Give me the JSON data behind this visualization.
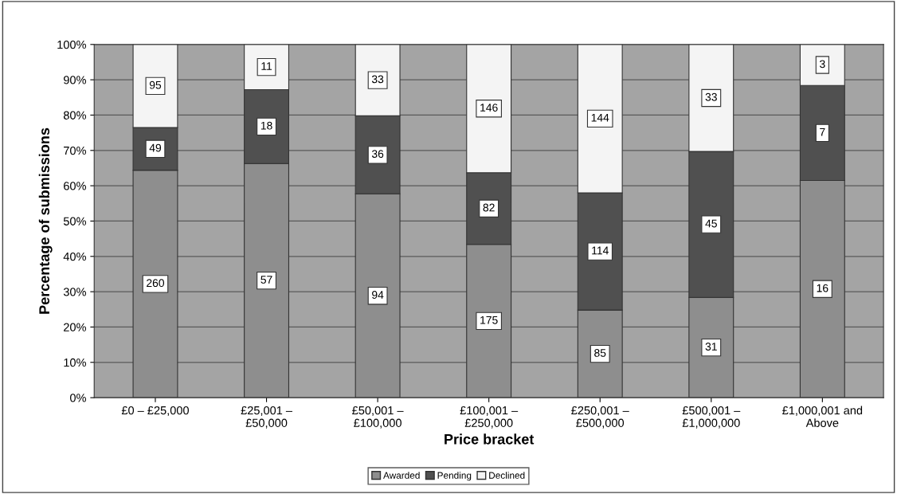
{
  "chart_data": {
    "type": "bar",
    "stacked": true,
    "xlabel": "Price bracket",
    "ylabel": "Percentage of submissions",
    "categories": [
      "£0 – £25,000",
      "£25,001 –\n£50,000",
      "£50,001 –\n£100,000",
      "£100,001 –\n£250,000",
      "£250,001 –\n£500,000",
      "£500,001 –\n£1,000,000",
      "£1,000,001 and\nAbove"
    ],
    "series": [
      {
        "name": "Awarded",
        "color": "#8e8e8e",
        "values": [
          64.4,
          66.3,
          57.7,
          43.4,
          24.8,
          28.4,
          61.5
        ]
      },
      {
        "name": "Pending",
        "color": "#505050",
        "values": [
          12.1,
          20.9,
          22.1,
          20.3,
          33.2,
          41.3,
          26.9
        ]
      },
      {
        "name": "Declined",
        "color": "#f4f4f4",
        "values": [
          23.5,
          12.8,
          20.2,
          36.3,
          42.0,
          30.3,
          11.6
        ]
      }
    ],
    "annotations": [
      {
        "text": "260",
        "x": "£0 – £25,000",
        "y": 32.2
      },
      {
        "text": "49",
        "x": "£0 – £25,000",
        "y": 70.45
      },
      {
        "text": "95",
        "x": "£0 – £25,000",
        "y": 88.25
      },
      {
        "text": "57",
        "x": "£25,001 –\n£50,000",
        "y": 33.15
      },
      {
        "text": "18",
        "x": "£25,001 –\n£50,000",
        "y": 76.75
      },
      {
        "text": "11",
        "x": "£25,001 –\n£50,000",
        "y": 93.6
      },
      {
        "text": "94",
        "x": "£50,001 –\n£100,000",
        "y": 28.85
      },
      {
        "text": "36",
        "x": "£50,001 –\n£100,000",
        "y": 68.75
      },
      {
        "text": "33",
        "x": "£50,001 –\n£100,000",
        "y": 89.9
      },
      {
        "text": "175",
        "x": "£100,001 –\n£250,000",
        "y": 21.7
      },
      {
        "text": "82",
        "x": "£100,001 –\n£250,000",
        "y": 53.55
      },
      {
        "text": "146",
        "x": "£100,001 –\n£250,000",
        "y": 81.85
      },
      {
        "text": "85",
        "x": "£250,001 –\n£500,000",
        "y": 12.4
      },
      {
        "text": "114",
        "x": "£250,001 –\n£500,000",
        "y": 41.4
      },
      {
        "text": "144",
        "x": "£250,001 –\n£500,000",
        "y": 79.0
      },
      {
        "text": "31",
        "x": "£500,001 –\n£1,000,000",
        "y": 14.2
      },
      {
        "text": "45",
        "x": "£500,001 –\n£1,000,000",
        "y": 49.05
      },
      {
        "text": "33",
        "x": "£500,001 –\n£1,000,000",
        "y": 84.85
      },
      {
        "text": "16",
        "x": "£1,000,001 and\nAbove",
        "y": 30.75
      },
      {
        "text": "7",
        "x": "£1,000,001 and\nAbove",
        "y": 74.95
      },
      {
        "text": "3",
        "x": "£1,000,001 and\nAbove",
        "y": 94.2
      }
    ],
    "ylim": [
      0,
      100
    ],
    "yticks": [
      {
        "value": 0,
        "label": "0%"
      },
      {
        "value": 10,
        "label": "10%"
      },
      {
        "value": 20,
        "label": "20%"
      },
      {
        "value": 30,
        "label": "30%"
      },
      {
        "value": 40,
        "label": "40%"
      },
      {
        "value": 50,
        "label": "50%"
      },
      {
        "value": 60,
        "label": "60%"
      },
      {
        "value": 70,
        "label": "70%"
      },
      {
        "value": 80,
        "label": "80%"
      },
      {
        "value": 90,
        "label": "90%"
      },
      {
        "value": 100,
        "label": "100%"
      }
    ],
    "grid": "y",
    "legend": "bottom"
  }
}
